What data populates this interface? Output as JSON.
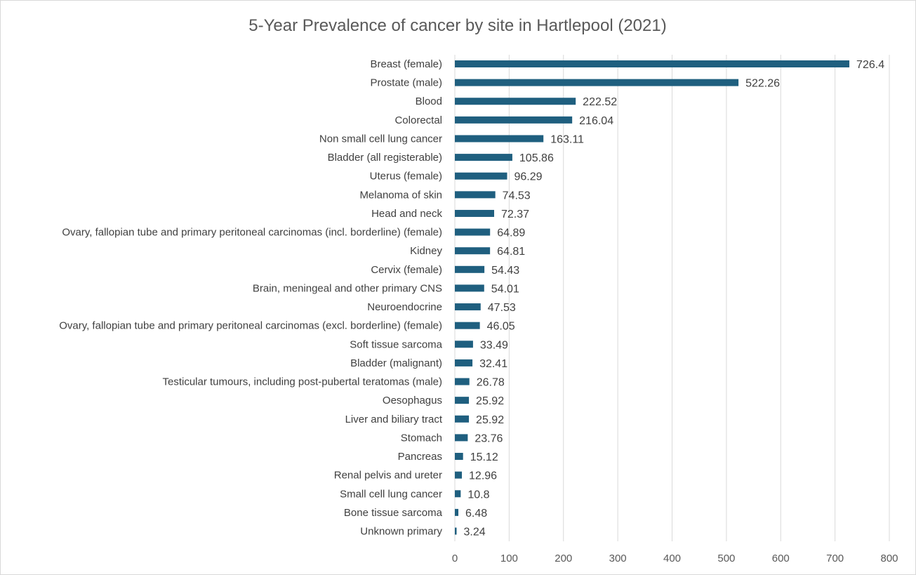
{
  "chart_data": {
    "type": "bar",
    "orientation": "horizontal",
    "title": "5-Year Prevalence of cancer by site in Hartlepool (2021)",
    "xlabel": "",
    "ylabel": "",
    "xlim": [
      0,
      800
    ],
    "xticks": [
      0,
      100,
      200,
      300,
      400,
      500,
      600,
      700,
      800
    ],
    "grid": true,
    "legend": "none",
    "bar_color": "#1f5f7f",
    "categories": [
      "Breast (female)",
      "Prostate (male)",
      "Blood",
      "Colorectal",
      "Non small cell lung cancer",
      "Bladder (all registerable)",
      "Uterus (female)",
      "Melanoma of skin",
      "Head and neck",
      "Ovary, fallopian tube and primary peritoneal carcinomas (incl. borderline) (female)",
      "Kidney",
      "Cervix (female)",
      "Brain, meningeal and other primary CNS",
      "Neuroendocrine",
      "Ovary, fallopian tube and primary peritoneal carcinomas (excl. borderline) (female)",
      "Soft tissue sarcoma",
      "Bladder (malignant)",
      "Testicular tumours, including post-pubertal teratomas (male)",
      "Oesophagus",
      "Liver and biliary tract",
      "Stomach",
      "Pancreas",
      "Renal pelvis and ureter",
      "Small cell lung cancer",
      "Bone tissue sarcoma",
      "Unknown primary"
    ],
    "values": [
      726.4,
      522.26,
      222.52,
      216.04,
      163.11,
      105.86,
      96.29,
      74.53,
      72.37,
      64.89,
      64.81,
      54.43,
      54.01,
      47.53,
      46.05,
      33.49,
      32.41,
      26.78,
      25.92,
      25.92,
      23.76,
      15.12,
      12.96,
      10.8,
      6.48,
      3.24
    ],
    "value_labels": [
      "726.4",
      "522.26",
      "222.52",
      "216.04",
      "163.11",
      "105.86",
      "96.29",
      "74.53",
      "72.37",
      "64.89",
      "64.81",
      "54.43",
      "54.01",
      "47.53",
      "46.05",
      "33.49",
      "32.41",
      "26.78",
      "25.92",
      "25.92",
      "23.76",
      "15.12",
      "12.96",
      "10.8",
      "6.48",
      "3.24"
    ]
  }
}
